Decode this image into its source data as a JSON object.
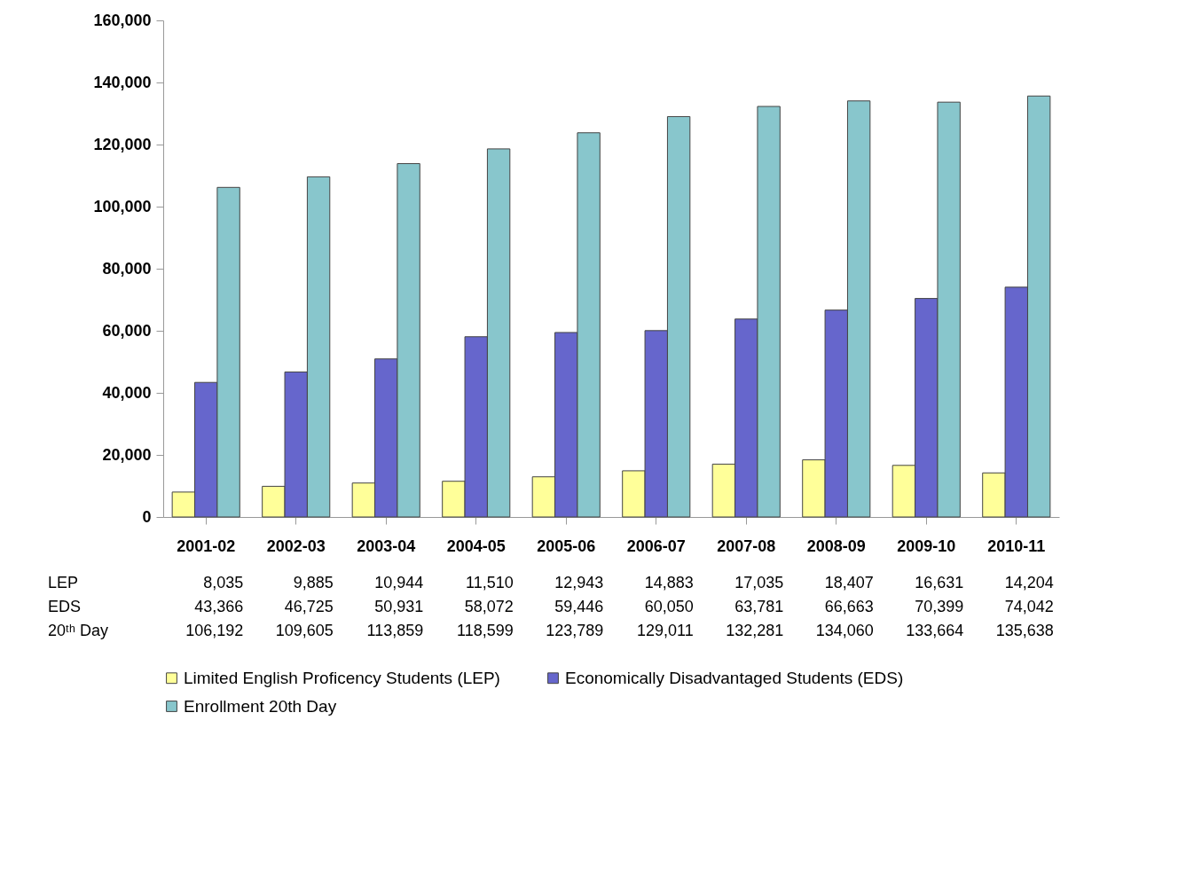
{
  "chart_data": {
    "type": "bar",
    "categories": [
      "2001-02",
      "2002-03",
      "2003-04",
      "2004-05",
      "2005-06",
      "2006-07",
      "2007-08",
      "2008-09",
      "2009-10",
      "2010-11"
    ],
    "series": [
      {
        "name": "Limited English Proficency Students (LEP)",
        "color": "#ffff99",
        "values": [
          8035,
          9885,
          10944,
          11510,
          12943,
          14883,
          17035,
          18407,
          16631,
          14204
        ],
        "value_labels": [
          "8,035",
          "9,885",
          "10,944",
          "11,510",
          "12,943",
          "14,883",
          "17,035",
          "18,407",
          "16,631",
          "14,204"
        ]
      },
      {
        "name": "Economically Disadvantaged Students (EDS)",
        "color": "#6666cc",
        "values": [
          43366,
          46725,
          50931,
          58072,
          59446,
          60050,
          63781,
          66663,
          70399,
          74042
        ],
        "value_labels": [
          "43,366",
          "46,725",
          "50,931",
          "58,072",
          "59,446",
          "60,050",
          "63,781",
          "66,663",
          "70,399",
          "74,042"
        ]
      },
      {
        "name": "Enrollment 20th Day",
        "color": "#88c6cc",
        "values": [
          106192,
          109605,
          113859,
          118599,
          123789,
          129011,
          132281,
          134060,
          133664,
          135638
        ],
        "value_labels": [
          "106,192",
          "109,605",
          "113,859",
          "118,599",
          "123,789",
          "129,011",
          "132,281",
          "134,060",
          "133,664",
          "135,638"
        ]
      }
    ],
    "ylim": [
      0,
      160000
    ],
    "yticks": [
      {
        "value": 0,
        "label": "0"
      },
      {
        "value": 20000,
        "label": "20,000"
      },
      {
        "value": 40000,
        "label": "40,000"
      },
      {
        "value": 60000,
        "label": "60,000"
      },
      {
        "value": 80000,
        "label": "80,000"
      },
      {
        "value": 100000,
        "label": "100,000"
      },
      {
        "value": 120000,
        "label": "120,000"
      },
      {
        "value": 140000,
        "label": "140,000"
      },
      {
        "value": 160000,
        "label": "160,000"
      }
    ],
    "annotations": [
      "LEP",
      "EDS",
      "20ᵗʰ Day"
    ],
    "grid": false,
    "legend": "bottom"
  }
}
